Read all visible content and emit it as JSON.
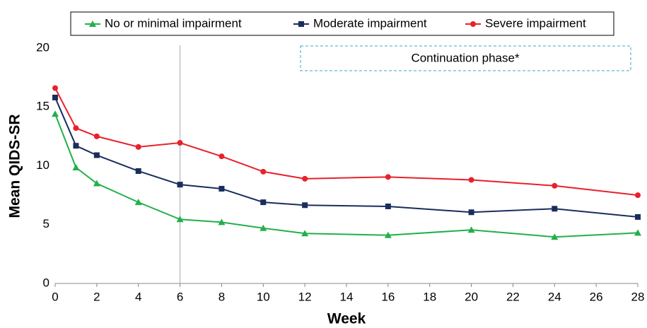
{
  "chart_data": {
    "type": "line",
    "x_label": "Week",
    "y_label": "Mean QIDS-SR",
    "annotation": "Continuation phase*",
    "vline": 6,
    "x": [
      0,
      1,
      2,
      4,
      6,
      8,
      10,
      12,
      16,
      20,
      24,
      28
    ],
    "series": [
      {
        "name": "No or minimal impairment",
        "color": "#22b04b",
        "marker": "triangle",
        "values": [
          14.4,
          9.85,
          8.5,
          6.9,
          5.45,
          5.2,
          4.7,
          4.25,
          4.1,
          4.55,
          3.95,
          4.3
        ]
      },
      {
        "name": "Moderate impairment",
        "color": "#1a2e5c",
        "marker": "square",
        "values": [
          15.8,
          11.7,
          10.9,
          9.55,
          8.4,
          8.05,
          6.9,
          6.65,
          6.55,
          6.05,
          6.35,
          5.65
        ]
      },
      {
        "name": "Severe impairment",
        "color": "#e8212a",
        "marker": "circle",
        "values": [
          16.6,
          13.2,
          12.5,
          11.6,
          11.95,
          10.8,
          9.5,
          8.9,
          9.05,
          8.8,
          8.3,
          7.5
        ]
      }
    ],
    "xlim": [
      0,
      28
    ],
    "xticks": [
      0,
      2,
      4,
      6,
      8,
      10,
      12,
      14,
      16,
      18,
      20,
      22,
      24,
      26,
      28
    ],
    "ylim": [
      0,
      20
    ],
    "yticks": [
      0,
      5,
      10,
      15,
      20
    ],
    "grid": false
  }
}
